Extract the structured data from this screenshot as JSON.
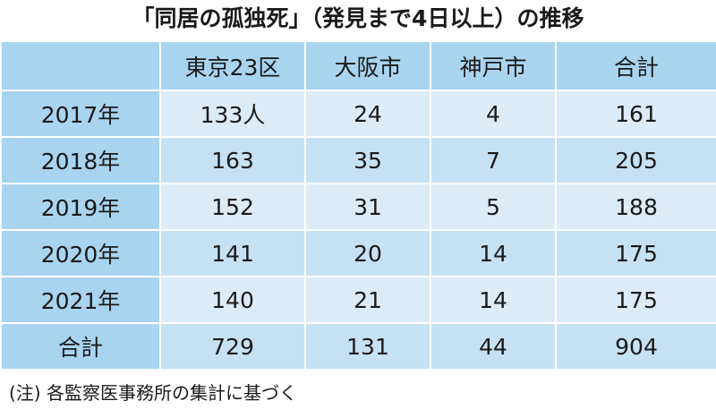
{
  "header": {
    "title": "「同居の孤独死」（発見まで4日以上）の推移"
  },
  "table": {
    "columns": [
      "東京23区",
      "大阪市",
      "神戸市",
      "合計"
    ],
    "rows": [
      [
        "2017年",
        "133人",
        "24",
        "4",
        "161"
      ],
      [
        "2018年",
        "163",
        "35",
        "7",
        "205"
      ],
      [
        "2019年",
        "152",
        "31",
        "5",
        "188"
      ],
      [
        "2020年",
        "141",
        "20",
        "14",
        "175"
      ],
      [
        "2021年",
        "140",
        "21",
        "14",
        "175"
      ],
      [
        "合計",
        "729",
        "131",
        "44",
        "904"
      ]
    ]
  },
  "note": "(注) 各監察医事務所の集計に基づく"
}
